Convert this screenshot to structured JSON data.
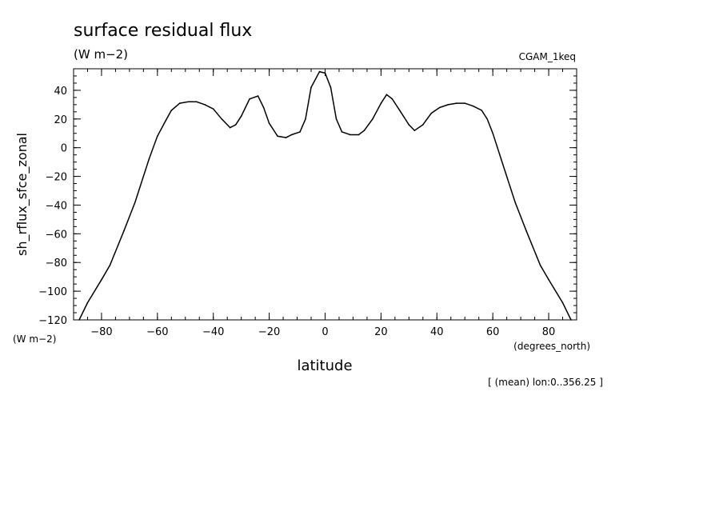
{
  "chart_data": {
    "type": "line",
    "title": "surface residual flux",
    "units": "(W m−2)",
    "dataset": "CGAM_1keq",
    "xlabel": "latitude",
    "x_units": "(degrees_north)",
    "ylabel": "sh_rflux_sfce_zonal",
    "y_units": "(W m−2)",
    "footnote": "[ (mean) lon:0..356.25 ]",
    "xlim": [
      -90,
      90
    ],
    "ylim": [
      -120,
      55
    ],
    "x_ticks": [
      -80,
      -60,
      -40,
      -20,
      0,
      20,
      40,
      60,
      80
    ],
    "x_tick_labels": [
      "−80",
      "−60",
      "−40",
      "−20",
      "0",
      "20",
      "40",
      "60",
      "80"
    ],
    "y_ticks": [
      40,
      20,
      0,
      -20,
      -40,
      -60,
      -80,
      -100,
      -120
    ],
    "y_tick_labels": [
      "40",
      "20",
      "0",
      "−20",
      "−40",
      "−60",
      "−80",
      "−100",
      "−120"
    ],
    "grid": false,
    "series": [
      {
        "x": [
          -88,
          -85,
          -80,
          -77,
          -72,
          -68,
          -63,
          -60,
          -57,
          -55,
          -52,
          -49,
          -46,
          -43,
          -40,
          -37,
          -34,
          -32,
          -30,
          -27,
          -24,
          -22,
          -20,
          -17,
          -14,
          -12,
          -9,
          -7,
          -5,
          -2,
          0,
          2,
          4,
          6,
          9,
          12,
          14,
          17,
          20,
          22,
          24,
          27,
          30,
          32,
          35,
          38,
          41,
          44,
          47,
          50,
          53,
          56,
          58,
          60,
          63,
          68,
          72,
          77,
          80,
          85,
          88
        ],
        "y": [
          -120,
          -108,
          -92,
          -82,
          -58,
          -38,
          -8,
          8,
          19,
          26,
          31,
          32,
          32,
          30,
          27,
          20,
          14,
          16,
          22,
          34,
          36,
          28,
          17,
          8,
          7,
          9,
          11,
          20,
          42,
          53,
          52,
          42,
          20,
          11,
          9,
          9,
          12,
          20,
          31,
          37,
          34,
          25,
          16,
          12,
          16,
          24,
          28,
          30,
          31,
          31,
          29,
          26,
          20,
          10,
          -8,
          -38,
          -58,
          -82,
          -92,
          -108,
          -120
        ]
      }
    ]
  }
}
